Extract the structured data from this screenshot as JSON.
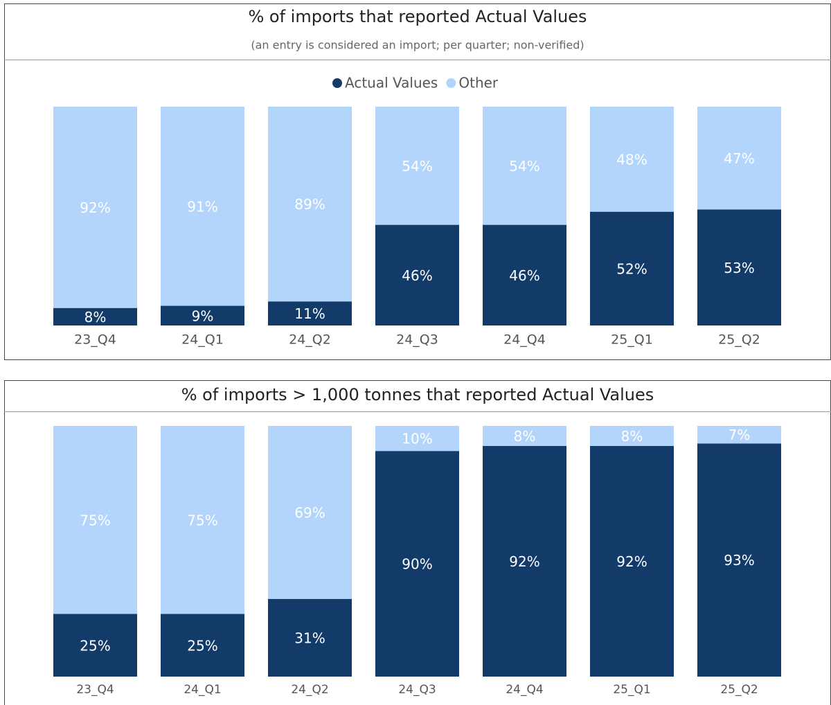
{
  "chart_data": [
    {
      "type": "bar",
      "stacked": true,
      "title": "% of imports that reported Actual Values",
      "subtitle": "(an entry is considered an import; per quarter; non-verified)",
      "legend": "top",
      "categories": [
        "23_Q4",
        "24_Q1",
        "24_Q2",
        "24_Q3",
        "24_Q4",
        "25_Q1",
        "25_Q2"
      ],
      "series": [
        {
          "name": "Actual Values",
          "color": "#133b6a",
          "values": [
            8,
            9,
            11,
            46,
            46,
            52,
            53
          ],
          "value_labels": [
            "8%",
            "9%",
            "11%",
            "46%",
            "46%",
            "52%",
            "53%"
          ]
        },
        {
          "name": "Other",
          "color": "#b3d4fb",
          "values": [
            92,
            91,
            89,
            54,
            54,
            48,
            47
          ],
          "value_labels": [
            "92%",
            "91%",
            "89%",
            "54%",
            "54%",
            "48%",
            "47%"
          ]
        }
      ]
    },
    {
      "type": "bar",
      "stacked": true,
      "title": "% of imports > 1,000 tonnes that reported Actual Values",
      "categories": [
        "23_Q4",
        "24_Q1",
        "24_Q2",
        "24_Q3",
        "24_Q4",
        "25_Q1",
        "25_Q2"
      ],
      "series": [
        {
          "color": "#133b6a",
          "values": [
            25,
            25,
            31,
            90,
            92,
            92,
            93
          ],
          "value_labels": [
            "25%",
            "25%",
            "31%",
            "90%",
            "92%",
            "92%",
            "93%"
          ]
        },
        {
          "color": "#b3d4fb",
          "values": [
            75,
            75,
            69,
            10,
            8,
            8,
            7
          ],
          "value_labels": [
            "75%",
            "75%",
            "69%",
            "10%",
            "8%",
            "8%",
            "7%"
          ]
        }
      ]
    }
  ]
}
